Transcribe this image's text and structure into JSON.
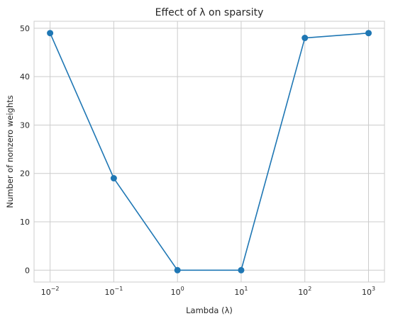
{
  "chart_data": {
    "type": "line",
    "title": "Effect of λ on sparsity",
    "xlabel": "Lambda (λ)",
    "ylabel": "Number of nonzero weights",
    "xscale": "log",
    "x_tick_exponents": [
      "−2",
      "−1",
      "0",
      "1",
      "2",
      "3"
    ],
    "y_ticks": [
      0,
      10,
      20,
      30,
      40,
      50
    ],
    "ylim": [
      -2.45,
      51.45
    ],
    "xlim": [
      0.0056,
      1780
    ],
    "grid": true,
    "series": [
      {
        "x": [
          0.01,
          0.1,
          1,
          10,
          100,
          1000
        ],
        "y": [
          49,
          19,
          0,
          0,
          48,
          49
        ],
        "color": "#1f77b4",
        "marker": "circle"
      }
    ]
  }
}
